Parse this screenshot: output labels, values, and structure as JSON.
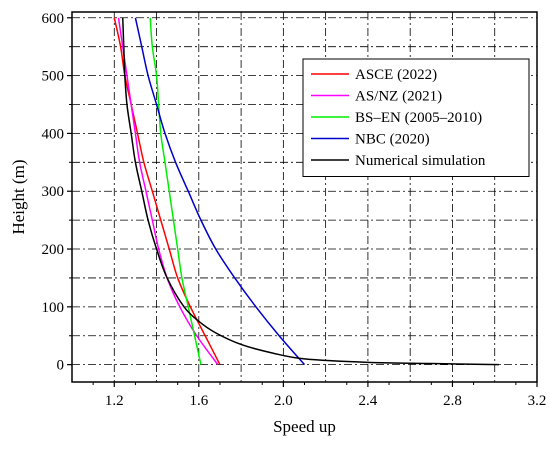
{
  "chart_data": {
    "type": "line",
    "title": "",
    "xlabel": "Speed up",
    "ylabel": "Height (m)",
    "xlim": [
      1.0,
      3.2
    ],
    "ylim": [
      -30,
      610
    ],
    "xticks": [
      1.2,
      1.6,
      2.0,
      2.4,
      2.8,
      3.2
    ],
    "xtick_labels": [
      "1.2",
      "1.6",
      "2.0",
      "2.4",
      "2.8",
      "3.2"
    ],
    "yticks": [
      0,
      100,
      200,
      300,
      400,
      500,
      600
    ],
    "ytick_labels": [
      "0",
      "100",
      "200",
      "300",
      "400",
      "500",
      "600"
    ],
    "grid": "dash-dot major and minor gridlines",
    "legend_position": "top-right",
    "series": [
      {
        "name": "ASCE (2022)",
        "color": "#ff0000",
        "points": [
          [
            1.7,
            0
          ],
          [
            1.63,
            50
          ],
          [
            1.56,
            100
          ],
          [
            1.5,
            150
          ],
          [
            1.46,
            200
          ],
          [
            1.42,
            250
          ],
          [
            1.38,
            300
          ],
          [
            1.34,
            350
          ],
          [
            1.31,
            400
          ],
          [
            1.28,
            450
          ],
          [
            1.25,
            500
          ],
          [
            1.23,
            550
          ],
          [
            1.2,
            600
          ]
        ]
      },
      {
        "name": "AS/NZ (2021)",
        "color": "#ff00ff",
        "points": [
          [
            1.69,
            0
          ],
          [
            1.59,
            50
          ],
          [
            1.51,
            100
          ],
          [
            1.45,
            150
          ],
          [
            1.41,
            200
          ],
          [
            1.38,
            250
          ],
          [
            1.35,
            300
          ],
          [
            1.32,
            350
          ],
          [
            1.3,
            400
          ],
          [
            1.28,
            450
          ],
          [
            1.26,
            500
          ],
          [
            1.24,
            550
          ],
          [
            1.22,
            600
          ]
        ]
      },
      {
        "name": "BS–EN (2005–2010)",
        "color": "#00ee00",
        "points": [
          [
            1.61,
            0
          ],
          [
            1.58,
            50
          ],
          [
            1.55,
            100
          ],
          [
            1.52,
            150
          ],
          [
            1.5,
            200
          ],
          [
            1.48,
            250
          ],
          [
            1.46,
            300
          ],
          [
            1.44,
            350
          ],
          [
            1.42,
            400
          ],
          [
            1.41,
            450
          ],
          [
            1.4,
            500
          ],
          [
            1.38,
            550
          ],
          [
            1.37,
            600
          ]
        ]
      },
      {
        "name": "NBC (2020)",
        "color": "#0000cc",
        "points": [
          [
            2.1,
            0
          ],
          [
            1.98,
            50
          ],
          [
            1.87,
            100
          ],
          [
            1.77,
            150
          ],
          [
            1.68,
            200
          ],
          [
            1.61,
            250
          ],
          [
            1.55,
            300
          ],
          [
            1.49,
            350
          ],
          [
            1.44,
            400
          ],
          [
            1.4,
            450
          ],
          [
            1.36,
            500
          ],
          [
            1.33,
            550
          ],
          [
            1.3,
            600
          ]
        ]
      },
      {
        "name": "Numerical simulation",
        "color": "#000000",
        "points": [
          [
            3.02,
            0
          ],
          [
            2.7,
            2
          ],
          [
            2.4,
            4
          ],
          [
            2.1,
            10
          ],
          [
            1.95,
            20
          ],
          [
            1.8,
            35
          ],
          [
            1.68,
            55
          ],
          [
            1.6,
            75
          ],
          [
            1.53,
            100
          ],
          [
            1.45,
            150
          ],
          [
            1.4,
            200
          ],
          [
            1.36,
            250
          ],
          [
            1.33,
            300
          ],
          [
            1.3,
            350
          ],
          [
            1.28,
            400
          ],
          [
            1.26,
            450
          ],
          [
            1.25,
            500
          ],
          [
            1.245,
            550
          ],
          [
            1.24,
            600
          ]
        ]
      }
    ]
  }
}
